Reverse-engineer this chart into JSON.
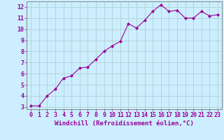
{
  "x": [
    0,
    1,
    2,
    3,
    4,
    5,
    6,
    7,
    8,
    9,
    10,
    11,
    12,
    13,
    14,
    15,
    16,
    17,
    18,
    19,
    20,
    21,
    22,
    23
  ],
  "y": [
    3.1,
    3.1,
    4.0,
    4.6,
    5.6,
    5.8,
    6.5,
    6.6,
    7.3,
    8.0,
    8.5,
    8.9,
    10.5,
    10.1,
    10.8,
    11.6,
    12.2,
    11.6,
    11.7,
    11.0,
    11.0,
    11.6,
    11.2,
    11.3
  ],
  "line_color": "#990099",
  "marker": "D",
  "markersize": 2.0,
  "linewidth": 0.8,
  "xlabel": "Windchill (Refroidissement éolien,°C)",
  "xlim": [
    -0.5,
    23.5
  ],
  "ylim": [
    2.8,
    12.5
  ],
  "yticks": [
    3,
    4,
    5,
    6,
    7,
    8,
    9,
    10,
    11,
    12
  ],
  "xticks": [
    0,
    1,
    2,
    3,
    4,
    5,
    6,
    7,
    8,
    9,
    10,
    11,
    12,
    13,
    14,
    15,
    16,
    17,
    18,
    19,
    20,
    21,
    22,
    23
  ],
  "bg_color": "#cceeff",
  "grid_color": "#aacccc",
  "tick_color": "#990099",
  "label_color": "#990099",
  "xlabel_fontsize": 6.5,
  "tick_fontsize": 6.0
}
